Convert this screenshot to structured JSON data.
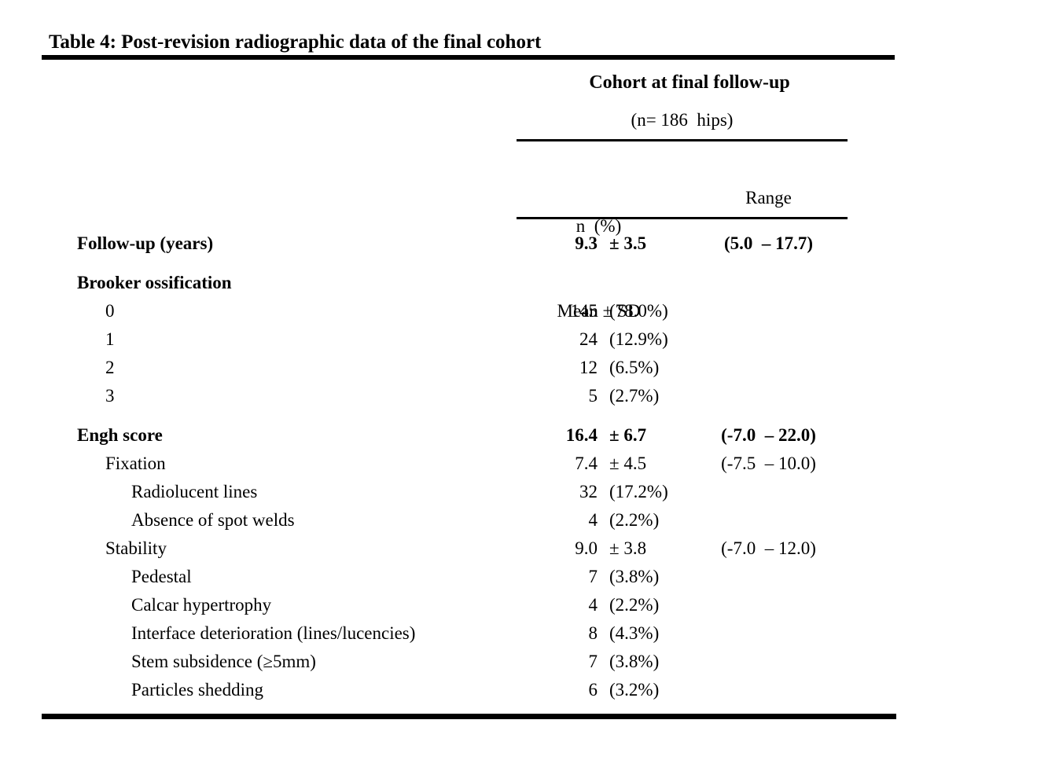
{
  "title": "Table 4: Post-revision radiographic data of the final cohort",
  "header": {
    "group_title": "Cohort at final follow-up",
    "group_subtitle": "(n= 186  hips)",
    "stat_line1": "n  (%)",
    "stat_line2": "Mean ± SD",
    "range_label": "Range"
  },
  "colors": {
    "text": "#000000",
    "background": "#ffffff",
    "rule": "#000000"
  },
  "rows": [
    {
      "label": "Follow-up (years)",
      "indent": 0,
      "bold": true,
      "gap": false,
      "value": "9.3",
      "aux": "± 3.5",
      "range": "(5.0  – 17.7)"
    },
    {
      "label": "Brooker ossification",
      "indent": 0,
      "bold": true,
      "gap": true,
      "value": "",
      "aux": "",
      "range": ""
    },
    {
      "label": "0",
      "indent": 1,
      "bold": false,
      "gap": false,
      "value": "145",
      "aux": "(78.0%)",
      "range": ""
    },
    {
      "label": "1",
      "indent": 1,
      "bold": false,
      "gap": false,
      "value": "24",
      "aux": "(12.9%)",
      "range": ""
    },
    {
      "label": "2",
      "indent": 1,
      "bold": false,
      "gap": false,
      "value": "12",
      "aux": "(6.5%)",
      "range": ""
    },
    {
      "label": "3",
      "indent": 1,
      "bold": false,
      "gap": false,
      "value": "5",
      "aux": "(2.7%)",
      "range": ""
    },
    {
      "label": "Engh score",
      "indent": 0,
      "bold": true,
      "gap": true,
      "value": "16.4",
      "aux": "± 6.7",
      "range": "(-7.0  – 22.0)"
    },
    {
      "label": "Fixation",
      "indent": 1,
      "bold": false,
      "gap": false,
      "value": "7.4",
      "aux": "± 4.5",
      "range": "(-7.5  – 10.0)"
    },
    {
      "label": "Radiolucent lines",
      "indent": 2,
      "bold": false,
      "gap": false,
      "value": "32",
      "aux": "(17.2%)",
      "range": ""
    },
    {
      "label": "Absence of spot welds",
      "indent": 2,
      "bold": false,
      "gap": false,
      "value": "4",
      "aux": "(2.2%)",
      "range": ""
    },
    {
      "label": "Stability",
      "indent": 1,
      "bold": false,
      "gap": false,
      "value": "9.0",
      "aux": "± 3.8",
      "range": "(-7.0  – 12.0)"
    },
    {
      "label": "Pedestal",
      "indent": 2,
      "bold": false,
      "gap": false,
      "value": "7",
      "aux": "(3.8%)",
      "range": ""
    },
    {
      "label": "Calcar hypertrophy",
      "indent": 2,
      "bold": false,
      "gap": false,
      "value": "4",
      "aux": "(2.2%)",
      "range": ""
    },
    {
      "label": "Interface deterioration (lines/lucencies)",
      "indent": 2,
      "bold": false,
      "gap": false,
      "value": "8",
      "aux": "(4.3%)",
      "range": ""
    },
    {
      "label": "Stem subsidence (≥5mm)",
      "indent": 2,
      "bold": false,
      "gap": false,
      "value": "7",
      "aux": "(3.8%)",
      "range": ""
    },
    {
      "label": "Particles shedding",
      "indent": 2,
      "bold": false,
      "gap": false,
      "value": "6",
      "aux": "(3.2%)",
      "range": ""
    }
  ]
}
